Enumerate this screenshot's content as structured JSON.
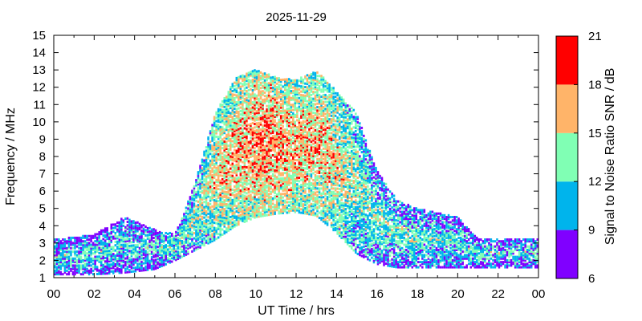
{
  "chart_data": {
    "type": "heatmap",
    "title": "2025-11-29",
    "xlabel": "UT Time / hrs",
    "ylabel": "Frequency / MHz",
    "xlim": [
      0,
      24
    ],
    "ylim": [
      1,
      15
    ],
    "x_tick_labels": [
      "00",
      "02",
      "04",
      "06",
      "08",
      "10",
      "12",
      "14",
      "16",
      "18",
      "20",
      "22",
      "00"
    ],
    "y_tick_labels": [
      "1",
      "2",
      "3",
      "4",
      "5",
      "6",
      "7",
      "8",
      "9",
      "10",
      "11",
      "12",
      "13",
      "14",
      "15"
    ],
    "colorbar": {
      "label": "Signal to Noise Ratio SNR / dB",
      "range": [
        6,
        21
      ],
      "tick_labels": [
        "6",
        "9",
        "12",
        "15",
        "18",
        "21"
      ],
      "bands": [
        {
          "from": 6,
          "to": 9,
          "color": "#8000ff"
        },
        {
          "from": 9,
          "to": 12,
          "color": "#00b4ec"
        },
        {
          "from": 12,
          "to": 15,
          "color": "#80ffb4"
        },
        {
          "from": 15,
          "to": 18,
          "color": "#ffb469"
        },
        {
          "from": 18,
          "to": 21,
          "color": "#ff0000"
        }
      ]
    },
    "snr_envelope": {
      "note_hours": [
        0,
        2,
        3.5,
        5,
        6,
        7,
        8,
        9,
        10,
        11,
        12,
        13,
        14,
        15,
        16,
        17,
        18,
        20,
        21,
        22,
        24
      ],
      "fmin_MHz": [
        1.2,
        1.2,
        1.3,
        1.5,
        2.0,
        2.6,
        3.2,
        4.0,
        4.5,
        4.7,
        4.8,
        4.6,
        3.6,
        2.4,
        1.8,
        1.6,
        1.6,
        1.6,
        1.6,
        1.6,
        1.6
      ],
      "fmax_MHz": [
        3.2,
        3.5,
        4.5,
        3.8,
        3.5,
        6.5,
        10.5,
        12.5,
        13.0,
        12.6,
        12.4,
        13.0,
        11.8,
        10.5,
        7.2,
        5.5,
        5.0,
        4.5,
        3.3,
        3.2,
        3.3
      ],
      "dominant_snr_dB": [
        10,
        10,
        10,
        10,
        11,
        12,
        14,
        15,
        16,
        16,
        15,
        15,
        14,
        12,
        11,
        11,
        11,
        10,
        10,
        10,
        10
      ]
    }
  }
}
